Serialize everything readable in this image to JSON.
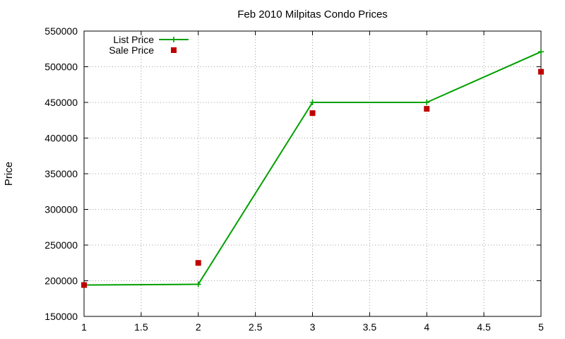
{
  "chart_data": {
    "type": "line",
    "title": "Feb 2010 Milpitas Condo Prices",
    "xlabel": "",
    "ylabel": "Price",
    "xlim": [
      1,
      5
    ],
    "ylim": [
      150000,
      550000
    ],
    "x_ticks": [
      "1",
      "1.5",
      "2",
      "2.5",
      "3",
      "3.5",
      "4",
      "4.5",
      "5"
    ],
    "y_ticks": [
      "150000",
      "200000",
      "250000",
      "300000",
      "350000",
      "400000",
      "450000",
      "500000",
      "550000"
    ],
    "grid": true,
    "legend_position": "top-left",
    "series": [
      {
        "name": "List Price",
        "style": "linespoints",
        "color": "#00a000",
        "marker": "plus",
        "x": [
          1,
          2,
          3,
          4,
          5
        ],
        "values": [
          194000,
          195000,
          450000,
          450000,
          521000
        ]
      },
      {
        "name": "Sale Price",
        "style": "points",
        "color": "#c00000",
        "marker": "square",
        "x": [
          1,
          2,
          3,
          4,
          5
        ],
        "values": [
          194000,
          225000,
          435000,
          441000,
          493000
        ]
      }
    ]
  }
}
